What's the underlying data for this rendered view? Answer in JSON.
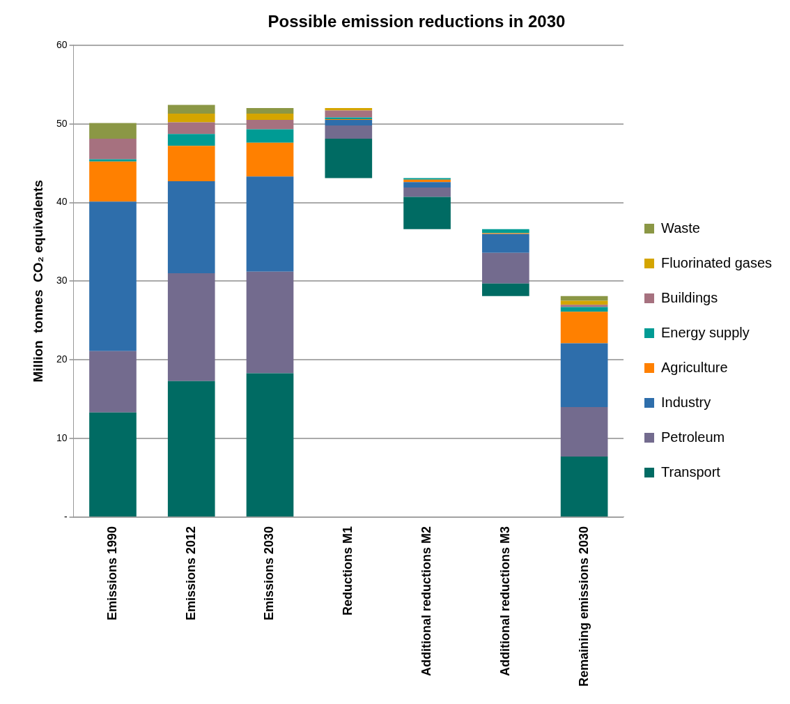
{
  "chart_data": {
    "type": "bar",
    "title": "Possible emission reductions in 2030",
    "ylabel": "Million  tonnes  CO₂ equivalents",
    "categories": [
      "Emissions 1990",
      "Emissions 2012",
      "Emissions 2030",
      "Reductions M1",
      "Additional reductions M2",
      "Additional reductions M3",
      "Remaining emissions 2030"
    ],
    "series": [
      {
        "name": "Transport",
        "color": "#006b63",
        "values": [
          13.3,
          17.3,
          18.3,
          5.0,
          4.1,
          1.6,
          7.7
        ],
        "base": [
          0,
          0,
          0,
          43.1,
          36.6,
          28.1,
          0
        ]
      },
      {
        "name": "Petroleum",
        "color": "#736b8e",
        "values": [
          7.8,
          13.7,
          12.9,
          1.7,
          1.2,
          3.9,
          6.3
        ],
        "base": [
          13.3,
          17.3,
          18.3,
          48.1,
          40.7,
          29.7,
          7.7
        ]
      },
      {
        "name": "Industry",
        "color": "#2e6eab",
        "values": [
          19.0,
          11.7,
          12.1,
          0.7,
          0.7,
          2.4,
          8.1
        ],
        "base": [
          21.1,
          31.0,
          31.2,
          49.8,
          41.9,
          33.6,
          14.0
        ]
      },
      {
        "name": "Agriculture",
        "color": "#ff8000",
        "values": [
          5.1,
          4.5,
          4.3,
          0.1,
          0.3,
          0.1,
          4.0
        ],
        "base": [
          40.1,
          42.7,
          43.3,
          50.5,
          42.6,
          36.0,
          22.1
        ]
      },
      {
        "name": "Energy supply",
        "color": "#009b94",
        "values": [
          0.3,
          1.5,
          1.7,
          0.2,
          0.2,
          0.5,
          0.6
        ],
        "base": [
          45.2,
          47.2,
          47.6,
          50.6,
          42.9,
          36.1,
          26.1
        ]
      },
      {
        "name": "Buildings",
        "color": "#a6717f",
        "values": [
          2.6,
          1.5,
          1.2,
          0.9,
          null,
          null,
          0.3
        ],
        "base": [
          45.5,
          48.7,
          49.3,
          50.8,
          null,
          null,
          26.7
        ]
      },
      {
        "name": "Fluorinated gases",
        "color": "#d4a500",
        "values": [
          null,
          1.1,
          0.8,
          0.3,
          null,
          null,
          0.5
        ],
        "base": [
          null,
          50.2,
          50.5,
          51.7,
          null,
          null,
          27.0
        ]
      },
      {
        "name": "Waste",
        "color": "#8b9745",
        "values": [
          2.0,
          1.1,
          0.7,
          null,
          null,
          null,
          0.6
        ],
        "base": [
          48.1,
          51.3,
          51.3,
          null,
          null,
          null,
          27.5
        ]
      }
    ],
    "ylim": [
      0,
      60
    ],
    "yticks": [
      {
        "value": 0,
        "label": "-"
      },
      10,
      20,
      30,
      40,
      50,
      60
    ],
    "grid": "y",
    "legend": "right"
  }
}
